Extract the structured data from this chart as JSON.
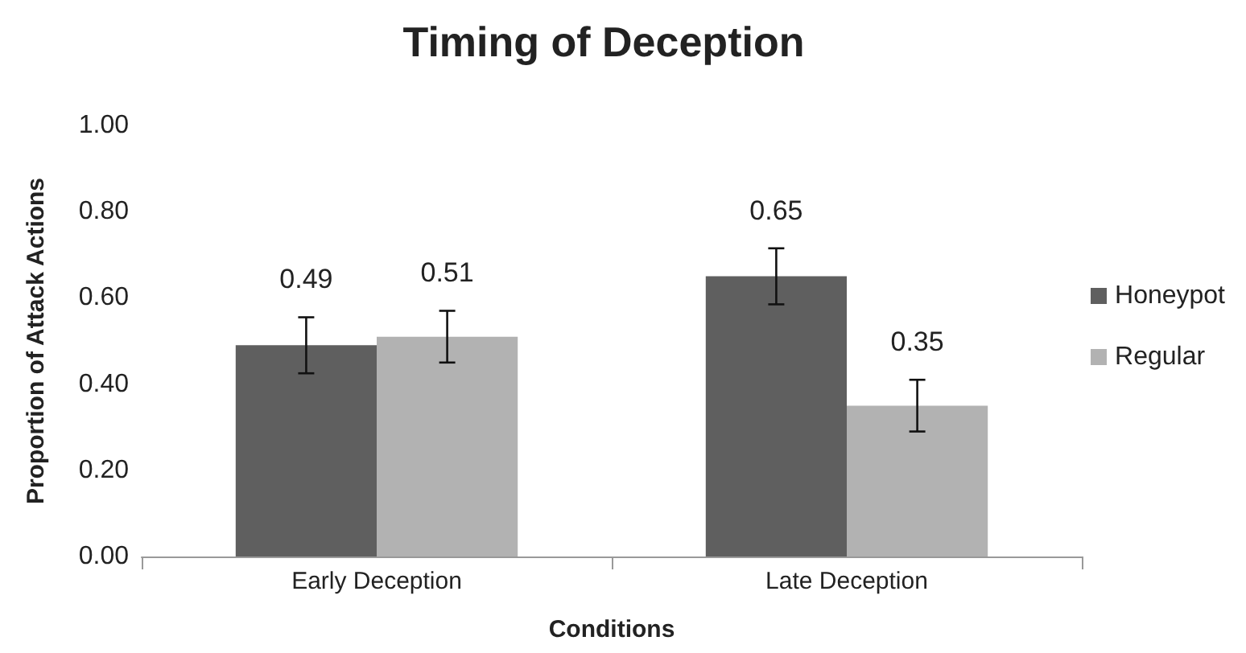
{
  "chart_data": {
    "type": "bar",
    "title": "Timing of Deception",
    "xlabel": "Conditions",
    "ylabel": "Proportion of Attack Actions",
    "categories": [
      "Early Deception",
      "Late Deception"
    ],
    "series": [
      {
        "name": "Honeypot",
        "color": "#5f5f5f",
        "values": [
          0.49,
          0.65
        ],
        "errors": [
          0.065,
          0.065
        ]
      },
      {
        "name": "Regular",
        "color": "#b2b2b2",
        "values": [
          0.51,
          0.35
        ],
        "errors": [
          0.06,
          0.06
        ]
      }
    ],
    "ylim": [
      0,
      1
    ],
    "yticks": [
      {
        "value": 0,
        "label": "0.00"
      },
      {
        "value": 0.2,
        "label": "0.20"
      },
      {
        "value": 0.4,
        "label": "0.40"
      },
      {
        "value": 0.6,
        "label": "0.60"
      },
      {
        "value": 0.8,
        "label": "0.80"
      },
      {
        "value": 1,
        "label": "1.00"
      }
    ],
    "grid": false,
    "legend": "right",
    "data_labels": true
  }
}
